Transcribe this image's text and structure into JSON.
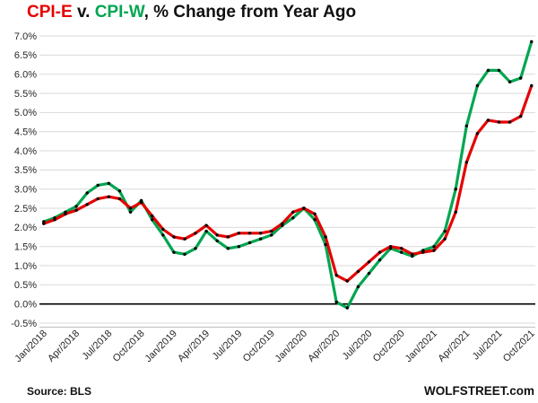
{
  "title": {
    "series_a": "CPI-E",
    "separator": " v. ",
    "series_b": "CPI-W",
    "suffix": ", % Change from Year Ago"
  },
  "footer": {
    "source": "Source: BLS",
    "site": "WOLFSTREET.com"
  },
  "colors": {
    "cpi_e": "#e60000",
    "cpi_w": "#00a651",
    "grid": "#d9d9d9",
    "axis": "#bfbfbf",
    "zero_line": "#000000",
    "marker": "#000000",
    "tick_text": "#262626"
  },
  "chart_data": {
    "type": "line",
    "title": "CPI-E v. CPI-W, % Change from Year Ago",
    "xlabel": "",
    "ylabel": "% change from year ago",
    "ylim": [
      -0.5,
      7.0
    ],
    "ytick_step": 0.5,
    "yticks": [
      "7.0%",
      "6.5%",
      "6.0%",
      "5.5%",
      "5.0%",
      "4.5%",
      "4.0%",
      "3.5%",
      "3.0%",
      "2.5%",
      "2.0%",
      "1.5%",
      "1.0%",
      "0.5%",
      "0.0%",
      "-0.5%"
    ],
    "grid": "horizontal",
    "legend_position": "in-title",
    "markers": "black-dots",
    "x_tick_every": 3,
    "x": [
      "Jan/2018",
      "Feb/2018",
      "Mar/2018",
      "Apr/2018",
      "May/2018",
      "Jun/2018",
      "Jul/2018",
      "Aug/2018",
      "Sep/2018",
      "Oct/2018",
      "Nov/2018",
      "Dec/2018",
      "Jan/2019",
      "Feb/2019",
      "Mar/2019",
      "Apr/2019",
      "May/2019",
      "Jun/2019",
      "Jul/2019",
      "Aug/2019",
      "Sep/2019",
      "Oct/2019",
      "Nov/2019",
      "Dec/2019",
      "Jan/2020",
      "Feb/2020",
      "Mar/2020",
      "Apr/2020",
      "May/2020",
      "Jun/2020",
      "Jul/2020",
      "Aug/2020",
      "Sep/2020",
      "Oct/2020",
      "Nov/2020",
      "Dec/2020",
      "Jan/2021",
      "Feb/2021",
      "Mar/2021",
      "Apr/2021",
      "May/2021",
      "Jun/2021",
      "Jul/2021",
      "Aug/2021",
      "Sep/2021",
      "Oct/2021"
    ],
    "series": [
      {
        "name": "CPI-E",
        "color": "#e60000",
        "values": [
          2.1,
          2.2,
          2.35,
          2.45,
          2.6,
          2.75,
          2.8,
          2.75,
          2.5,
          2.65,
          2.3,
          1.95,
          1.75,
          1.7,
          1.85,
          2.05,
          1.8,
          1.75,
          1.85,
          1.85,
          1.85,
          1.9,
          2.1,
          2.4,
          2.5,
          2.35,
          1.75,
          0.75,
          0.6,
          0.85,
          1.1,
          1.35,
          1.5,
          1.45,
          1.3,
          1.35,
          1.4,
          1.7,
          2.4,
          3.7,
          4.45,
          4.8,
          4.75,
          4.75,
          4.9,
          5.7
        ]
      },
      {
        "name": "CPI-W",
        "color": "#00a651",
        "values": [
          2.15,
          2.25,
          2.4,
          2.55,
          2.9,
          3.1,
          3.15,
          2.95,
          2.4,
          2.7,
          2.2,
          1.8,
          1.35,
          1.3,
          1.45,
          1.9,
          1.65,
          1.45,
          1.5,
          1.6,
          1.7,
          1.8,
          2.05,
          2.25,
          2.5,
          2.2,
          1.55,
          0.05,
          -0.1,
          0.45,
          0.8,
          1.15,
          1.45,
          1.35,
          1.25,
          1.4,
          1.5,
          1.9,
          3.0,
          4.65,
          5.7,
          6.1,
          6.1,
          5.8,
          5.9,
          6.85
        ]
      }
    ]
  }
}
